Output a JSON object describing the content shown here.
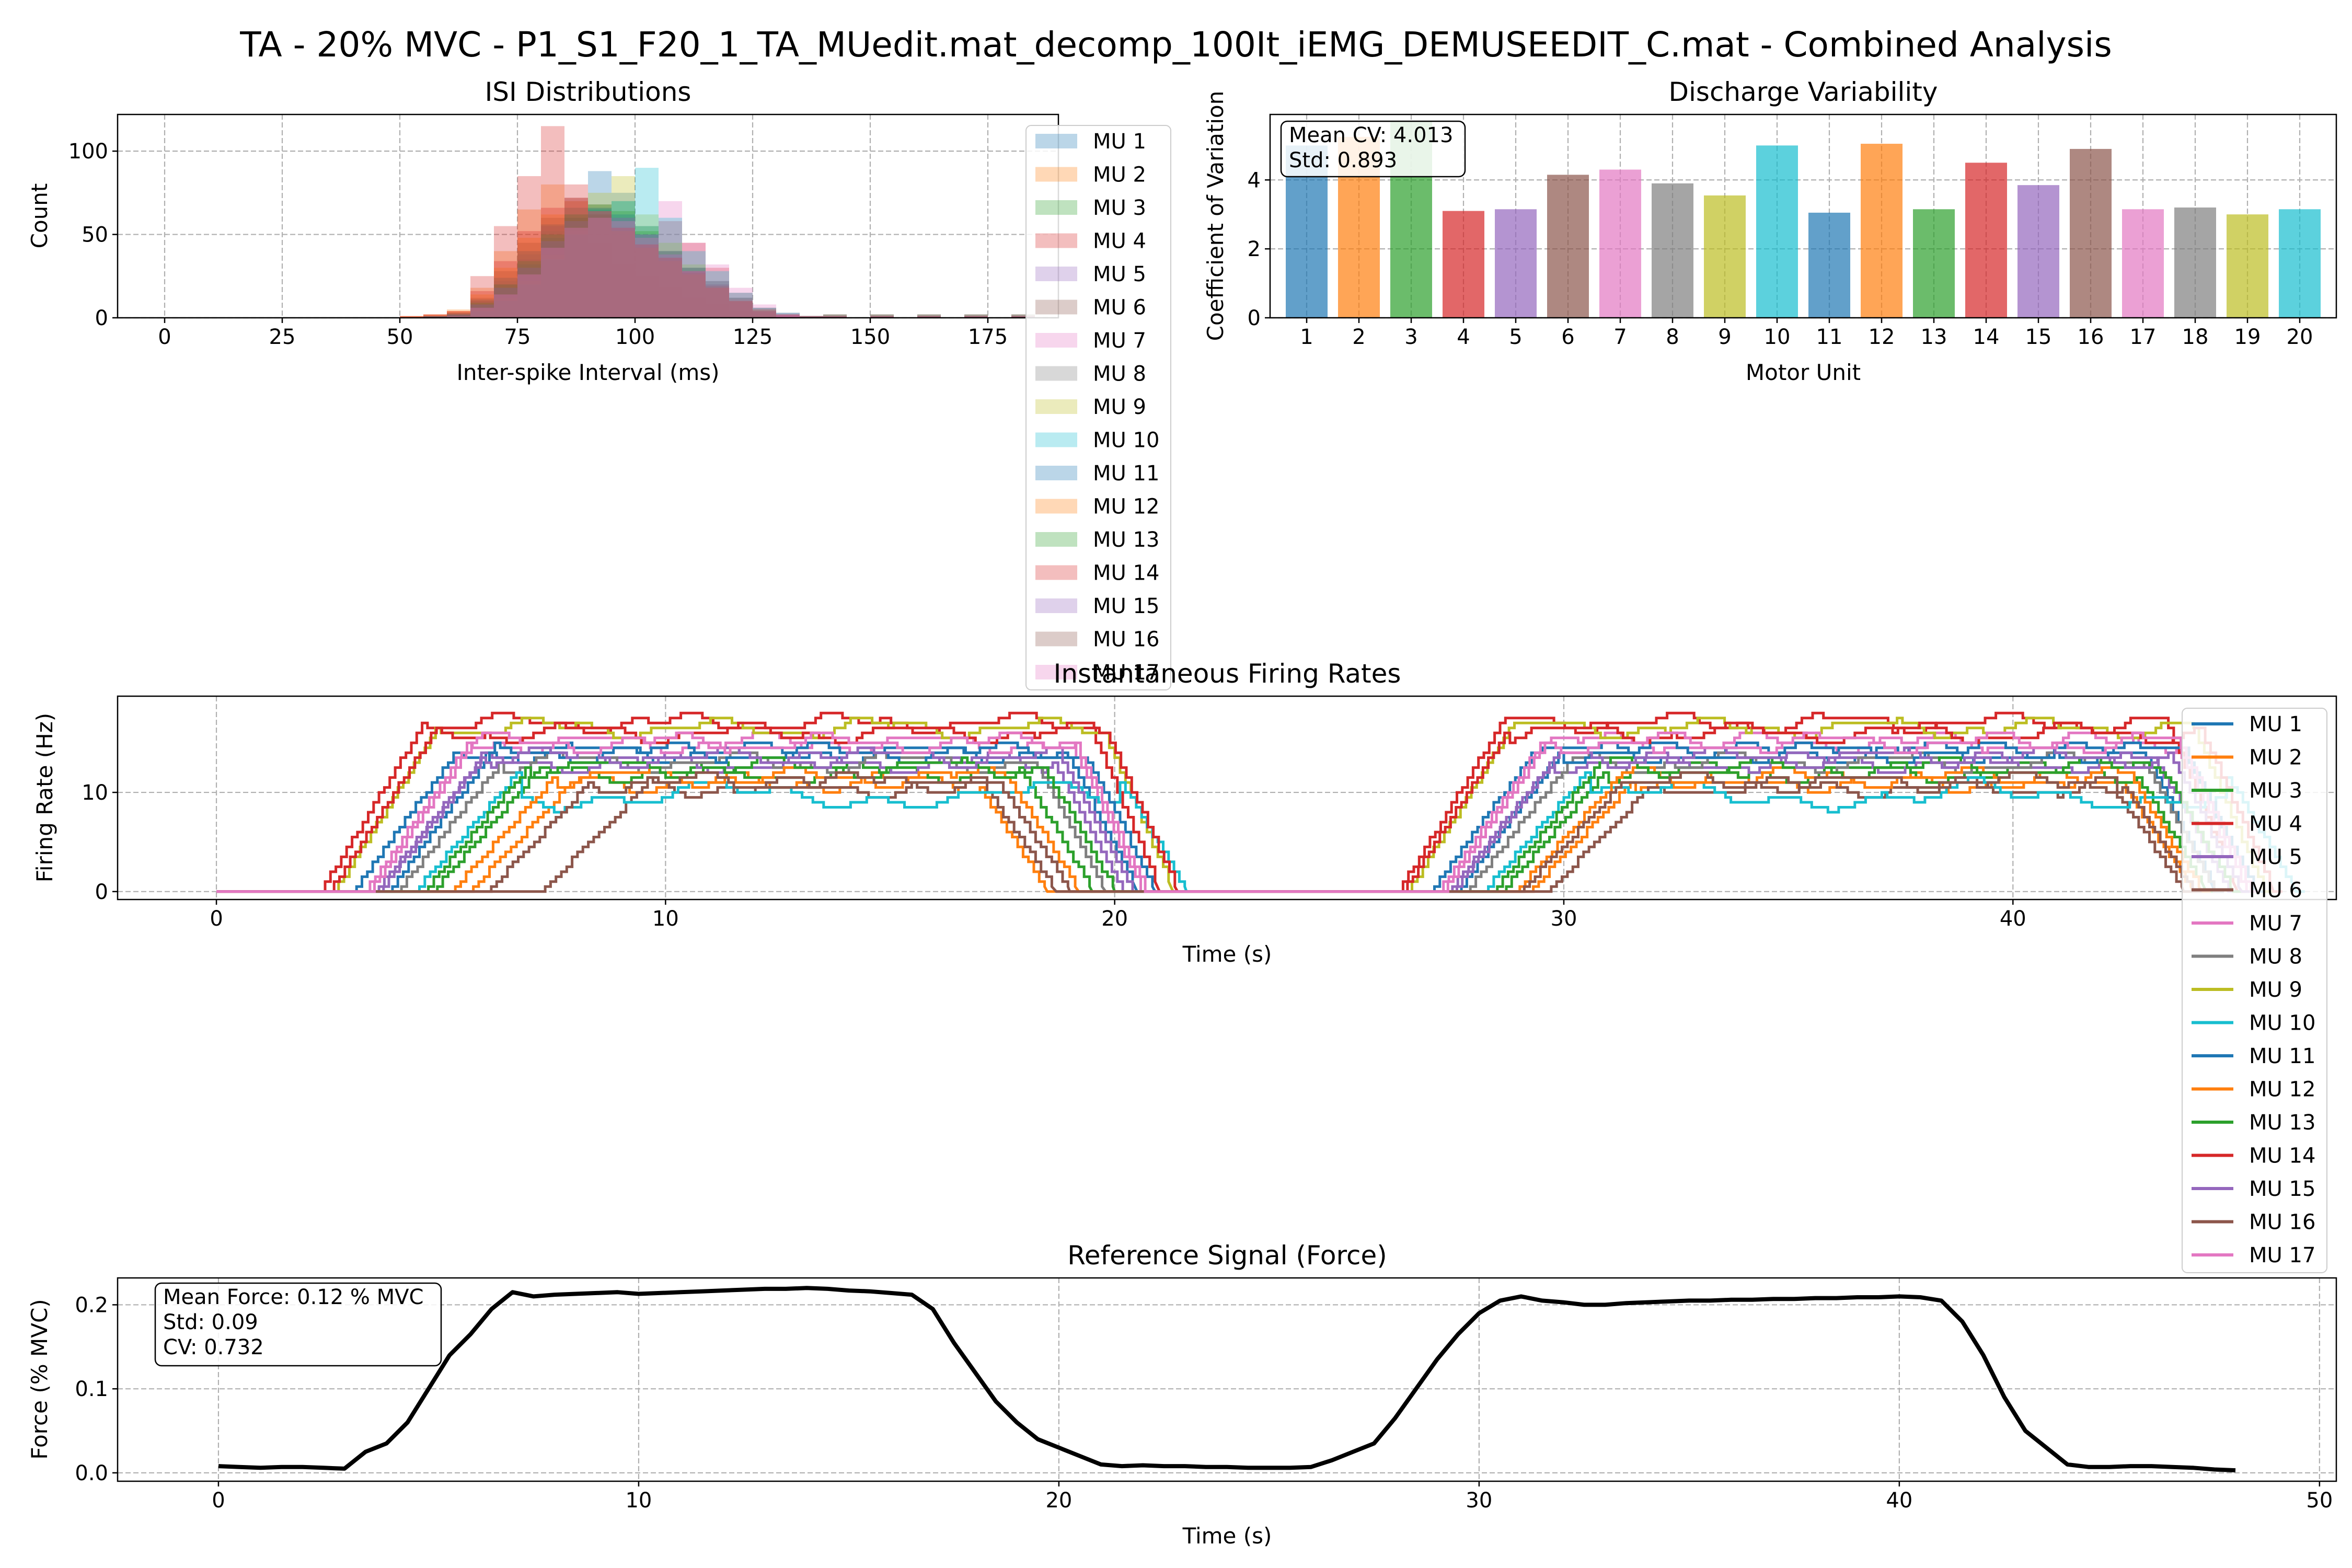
{
  "figure": {
    "title": "TA - 20% MVC - P1_S1_F20_1_TA_MUedit.mat_decomp_100It_iEMG_DEMUSEEDIT_C.mat - Combined Analysis"
  },
  "colors": {
    "tab10": [
      "#1f77b4",
      "#ff7f0e",
      "#2ca02c",
      "#d62728",
      "#9467bd",
      "#8c564b",
      "#e377c2",
      "#7f7f7f",
      "#bcbd22",
      "#17becf"
    ],
    "force_line": "#000000",
    "grid": "#b0b0b0"
  },
  "chart_data": [
    {
      "id": "isi",
      "type": "histogram",
      "title": "ISI Distributions",
      "xlabel": "Inter-spike Interval (ms)",
      "ylabel": "Count",
      "xlim": [
        -10,
        190
      ],
      "ylim": [
        0,
        122
      ],
      "xticks": [
        0,
        25,
        50,
        75,
        100,
        125,
        150,
        175
      ],
      "yticks": [
        0,
        50,
        100
      ],
      "grid": true,
      "legend_position": "right, overflowing below the axes",
      "series": [
        {
          "name": "MU 1",
          "values": [
            0,
            0,
            0,
            0,
            1,
            2,
            10,
            20,
            30,
            40,
            60,
            88,
            75,
            55,
            40,
            30,
            22,
            12,
            5,
            2,
            1,
            0
          ]
        },
        {
          "name": "MU 2",
          "values": [
            0,
            0,
            0,
            1,
            2,
            5,
            18,
            40,
            65,
            80,
            60,
            45,
            32,
            25,
            18,
            12,
            8,
            4,
            2,
            1,
            0,
            0
          ]
        },
        {
          "name": "MU 3",
          "values": [
            0,
            0,
            0,
            0,
            0,
            1,
            8,
            15,
            28,
            45,
            58,
            65,
            70,
            55,
            40,
            30,
            20,
            10,
            4,
            2,
            1,
            0
          ]
        },
        {
          "name": "MU 4",
          "values": [
            0,
            0,
            0,
            1,
            2,
            4,
            25,
            55,
            85,
            115,
            80,
            60,
            45,
            40,
            58,
            45,
            30,
            15,
            6,
            2,
            1,
            0
          ]
        },
        {
          "name": "MU 5",
          "values": [
            0,
            0,
            0,
            0,
            1,
            2,
            8,
            20,
            35,
            55,
            70,
            65,
            60,
            50,
            40,
            30,
            22,
            12,
            5,
            2,
            1,
            0
          ]
        },
        {
          "name": "MU 6",
          "values": [
            0,
            0,
            0,
            0,
            1,
            3,
            12,
            28,
            45,
            60,
            72,
            68,
            55,
            42,
            35,
            28,
            20,
            12,
            6,
            3,
            1,
            0
          ]
        },
        {
          "name": "MU 7",
          "values": [
            0,
            0,
            0,
            0,
            0,
            1,
            6,
            14,
            25,
            40,
            52,
            60,
            58,
            50,
            70,
            45,
            32,
            18,
            8,
            3,
            1,
            0
          ]
        },
        {
          "name": "MU 8",
          "values": [
            0,
            0,
            0,
            0,
            1,
            2,
            10,
            22,
            38,
            52,
            62,
            66,
            60,
            48,
            36,
            26,
            18,
            10,
            4,
            2,
            1,
            0
          ]
        },
        {
          "name": "MU 9",
          "values": [
            0,
            0,
            0,
            0,
            0,
            1,
            5,
            12,
            22,
            38,
            55,
            75,
            85,
            62,
            45,
            32,
            22,
            12,
            5,
            2,
            1,
            0
          ]
        },
        {
          "name": "MU 10",
          "values": [
            0,
            0,
            0,
            0,
            0,
            1,
            4,
            10,
            20,
            35,
            50,
            65,
            70,
            90,
            60,
            40,
            28,
            15,
            6,
            3,
            1,
            0
          ]
        },
        {
          "name": "MU 11",
          "values": [
            0,
            0,
            0,
            0,
            1,
            2,
            8,
            18,
            32,
            48,
            60,
            66,
            62,
            50,
            38,
            28,
            20,
            10,
            4,
            2,
            1,
            0
          ]
        },
        {
          "name": "MU 12",
          "values": [
            0,
            0,
            0,
            1,
            2,
            4,
            14,
            30,
            48,
            62,
            70,
            64,
            52,
            42,
            34,
            26,
            18,
            10,
            5,
            2,
            1,
            0
          ]
        },
        {
          "name": "MU 13",
          "values": [
            0,
            0,
            0,
            0,
            1,
            2,
            9,
            20,
            34,
            50,
            62,
            68,
            64,
            52,
            40,
            30,
            20,
            11,
            5,
            2,
            1,
            0
          ]
        },
        {
          "name": "MU 14",
          "values": [
            0,
            0,
            0,
            1,
            2,
            4,
            16,
            34,
            52,
            66,
            72,
            64,
            54,
            44,
            36,
            28,
            18,
            10,
            4,
            2,
            1,
            0
          ]
        },
        {
          "name": "MU 15",
          "values": [
            0,
            0,
            0,
            0,
            1,
            2,
            8,
            18,
            30,
            46,
            58,
            64,
            60,
            50,
            40,
            30,
            22,
            12,
            5,
            2,
            1,
            0
          ]
        },
        {
          "name": "MU 16",
          "values": [
            0,
            0,
            0,
            0,
            1,
            3,
            11,
            24,
            40,
            56,
            66,
            62,
            54,
            44,
            36,
            27,
            19,
            10,
            4,
            2,
            1,
            0
          ]
        },
        {
          "name": "MU 17",
          "values": [
            0,
            0,
            0,
            0,
            0,
            1,
            6,
            14,
            26,
            42,
            54,
            60,
            58,
            48,
            38,
            28,
            20,
            11,
            5,
            2,
            1,
            0
          ]
        }
      ]
    },
    {
      "id": "cv",
      "type": "bar",
      "title": "Discharge Variability",
      "xlabel": "Motor Unit",
      "ylabel": "Coefficient of Variation",
      "categories": [
        "1",
        "2",
        "3",
        "4",
        "5",
        "6",
        "7",
        "8",
        "9",
        "10",
        "11",
        "12",
        "13",
        "14",
        "15",
        "16",
        "17",
        "18",
        "19",
        "20"
      ],
      "values": [
        5.0,
        5.25,
        5.7,
        3.1,
        3.15,
        4.15,
        4.3,
        3.9,
        3.55,
        5.0,
        3.05,
        5.05,
        3.15,
        4.5,
        3.85,
        4.9,
        3.15,
        3.2,
        3.0,
        3.15
      ],
      "ylim": [
        0,
        5.9
      ],
      "yticks": [
        0,
        2,
        4
      ],
      "grid": true,
      "annotation": {
        "line1": "Mean CV: 4.013",
        "line2": "Std: 0.893"
      }
    },
    {
      "id": "firing",
      "type": "line",
      "title": "Instantaneous Firing Rates",
      "xlabel": "Time (s)",
      "ylabel": "Firing Rate (Hz)",
      "xlim": [
        -2.2,
        47.2
      ],
      "ylim": [
        -0.8,
        19.7
      ],
      "xticks": [
        0,
        10,
        20,
        30,
        40
      ],
      "yticks": [
        0,
        10
      ],
      "grid": true,
      "legend_position": "right, overflowing below the axes",
      "series": [
        {
          "name": "MU 1",
          "start1": 3.0,
          "end1": 20.5,
          "start2": 27.0,
          "end2": 44.5,
          "level": 14
        },
        {
          "name": "MU 2",
          "start1": 5.6,
          "end1": 18.5,
          "start2": 29.2,
          "end2": 44.0,
          "level": 11
        },
        {
          "name": "MU 3",
          "start1": 4.8,
          "end1": 19.5,
          "start2": 28.6,
          "end2": 44.3,
          "level": 12
        },
        {
          "name": "MU 4",
          "start1": 2.3,
          "end1": 21.0,
          "start2": 26.3,
          "end2": 45.0,
          "level": 17
        },
        {
          "name": "MU 5",
          "start1": 3.5,
          "end1": 20.2,
          "start2": 27.4,
          "end2": 44.8,
          "level": 13
        },
        {
          "name": "MU 6",
          "start1": 7.2,
          "end1": 18.7,
          "start2": 29.6,
          "end2": 43.8,
          "level": 10.5
        },
        {
          "name": "MU 7",
          "start1": 3.3,
          "end1": 20.6,
          "start2": 27.2,
          "end2": 45.2,
          "level": 15
        },
        {
          "name": "MU 8",
          "start1": 4.0,
          "end1": 19.8,
          "start2": 27.8,
          "end2": 44.5,
          "level": 13
        },
        {
          "name": "MU 9",
          "start1": 2.6,
          "end1": 21.3,
          "start2": 26.5,
          "end2": 45.6,
          "level": 16.5
        },
        {
          "name": "MU 10",
          "start1": 4.4,
          "end1": 21.6,
          "start2": 28.2,
          "end2": 46.3,
          "level": 12
        },
        {
          "name": "MU 11",
          "start1": 3.8,
          "end1": 20.9,
          "start2": 27.6,
          "end2": 45.4,
          "level": 14
        },
        {
          "name": "MU 12",
          "start1": 5.2,
          "end1": 19.2,
          "start2": 28.9,
          "end2": 44.2,
          "level": 11.5
        },
        {
          "name": "MU 13",
          "start1": 4.6,
          "end1": 20.0,
          "start2": 28.4,
          "end2": 44.9,
          "level": 12.5
        },
        {
          "name": "MU 14",
          "start1": 2.5,
          "end1": 21.4,
          "start2": 26.4,
          "end2": 45.8,
          "level": 16
        },
        {
          "name": "MU 15",
          "start1": 3.6,
          "end1": 20.4,
          "start2": 27.5,
          "end2": 45.1,
          "level": 13.5
        },
        {
          "name": "MU 16",
          "start1": 6.0,
          "end1": 19.0,
          "start2": 29.0,
          "end2": 44.0,
          "level": 11
        },
        {
          "name": "MU 17",
          "start1": 3.4,
          "end1": 20.7,
          "start2": 27.3,
          "end2": 45.3,
          "level": 15
        }
      ]
    },
    {
      "id": "force",
      "type": "line",
      "title": "Reference Signal (Force)",
      "xlabel": "Time (s)",
      "ylabel": "Force (% MVC)",
      "xlim": [
        -2.4,
        50.4
      ],
      "ylim": [
        -0.01,
        0.232
      ],
      "xticks": [
        0,
        10,
        20,
        30,
        40,
        50
      ],
      "yticks": [
        0.0,
        0.1,
        0.2
      ],
      "ytick_labels": [
        "0.0",
        "0.1",
        "0.2"
      ],
      "grid": true,
      "annotation": {
        "line1": "Mean Force: 0.12 % MVC",
        "line2": "Std: 0.09",
        "line3": "CV: 0.732"
      },
      "x": [
        0,
        0.5,
        1,
        1.5,
        2,
        2.5,
        3,
        3.5,
        4,
        4.5,
        5,
        5.5,
        6,
        6.5,
        7,
        7.5,
        8,
        8.5,
        9,
        9.5,
        10,
        10.5,
        11,
        11.5,
        12,
        12.5,
        13,
        13.5,
        14,
        14.5,
        15,
        15.5,
        16,
        16.5,
        17,
        17.5,
        18,
        18.5,
        19,
        19.5,
        20,
        20.5,
        21,
        21.5,
        22,
        22.5,
        23,
        23.5,
        24,
        24.5,
        25,
        25.5,
        26,
        26.5,
        27,
        27.5,
        28,
        28.5,
        29,
        29.5,
        30,
        30.5,
        31,
        31.5,
        32,
        32.5,
        33,
        33.5,
        34,
        34.5,
        35,
        35.5,
        36,
        36.5,
        37,
        37.5,
        38,
        38.5,
        39,
        39.5,
        40,
        40.5,
        41,
        41.5,
        42,
        42.5,
        43,
        43.5,
        44,
        44.5,
        45,
        45.5,
        46,
        46.5,
        47,
        47.5,
        48
      ],
      "y": [
        0.008,
        0.007,
        0.006,
        0.007,
        0.007,
        0.006,
        0.005,
        0.025,
        0.035,
        0.06,
        0.1,
        0.14,
        0.165,
        0.195,
        0.215,
        0.21,
        0.212,
        0.213,
        0.214,
        0.215,
        0.213,
        0.214,
        0.215,
        0.216,
        0.217,
        0.218,
        0.219,
        0.219,
        0.22,
        0.219,
        0.217,
        0.216,
        0.214,
        0.212,
        0.195,
        0.155,
        0.12,
        0.085,
        0.06,
        0.04,
        0.03,
        0.02,
        0.01,
        0.008,
        0.009,
        0.008,
        0.008,
        0.007,
        0.007,
        0.006,
        0.006,
        0.006,
        0.007,
        0.015,
        0.025,
        0.035,
        0.065,
        0.1,
        0.135,
        0.165,
        0.19,
        0.205,
        0.21,
        0.205,
        0.203,
        0.2,
        0.2,
        0.202,
        0.203,
        0.204,
        0.205,
        0.205,
        0.206,
        0.206,
        0.207,
        0.207,
        0.208,
        0.208,
        0.209,
        0.209,
        0.21,
        0.209,
        0.205,
        0.18,
        0.14,
        0.09,
        0.05,
        0.03,
        0.01,
        0.007,
        0.007,
        0.008,
        0.008,
        0.007,
        0.006,
        0.004,
        0.003
      ]
    }
  ]
}
